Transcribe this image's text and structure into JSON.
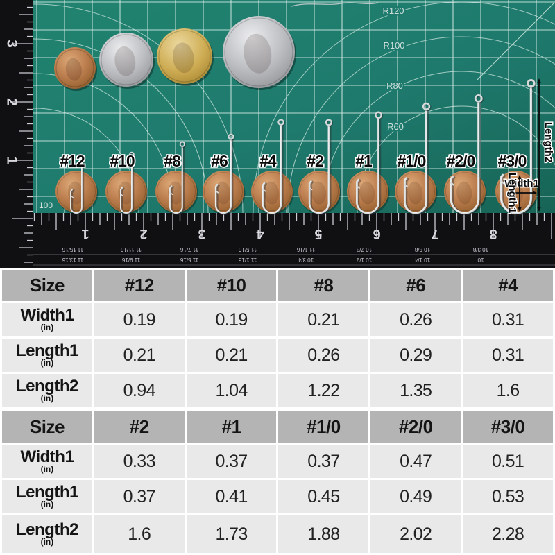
{
  "photo": {
    "radius_labels": [
      "R120",
      "R100",
      "R80",
      "R60"
    ],
    "corner_label": "100",
    "left_ruler_numbers": [
      "3",
      "2",
      "1"
    ],
    "bottom_ruler_numbers": [
      "1",
      "2",
      "3",
      "4",
      "5",
      "6",
      "7",
      "8"
    ],
    "fraction_row1": [
      "11 15/16",
      "11 11/16",
      "11 7/16",
      "11 5/16",
      "11 1/16",
      "10 7/8",
      "10 5/8",
      "10 3/8"
    ],
    "fraction_row2": [
      "11 13/16",
      "11 9/16",
      "11 5/16",
      "11 1/16",
      "10 3/4",
      "10 1/2",
      "10 1/4",
      "10"
    ],
    "coins": [
      "penny",
      "quarter",
      "dollar-coin",
      "half-dollar"
    ],
    "annotations": {
      "width1": "Width1",
      "length1": "Length1",
      "length2": "Length2"
    }
  },
  "hooks": [
    {
      "label": "#12",
      "width1": 0.19,
      "length1": 0.21,
      "length2": 0.94
    },
    {
      "label": "#10",
      "width1": 0.19,
      "length1": 0.21,
      "length2": 1.04
    },
    {
      "label": "#8",
      "width1": 0.21,
      "length1": 0.26,
      "length2": 1.22
    },
    {
      "label": "#6",
      "width1": 0.26,
      "length1": 0.29,
      "length2": 1.35
    },
    {
      "label": "#4",
      "width1": 0.31,
      "length1": 0.31,
      "length2": 1.6
    },
    {
      "label": "#2",
      "width1": 0.33,
      "length1": 0.37,
      "length2": 1.6
    },
    {
      "label": "#1",
      "width1": 0.37,
      "length1": 0.41,
      "length2": 1.73
    },
    {
      "label": "#1/0",
      "width1": 0.37,
      "length1": 0.45,
      "length2": 1.88
    },
    {
      "label": "#2/0",
      "width1": 0.47,
      "length1": 0.49,
      "length2": 2.02
    },
    {
      "label": "#3/0",
      "width1": 0.51,
      "length1": 0.53,
      "length2": 2.28
    }
  ],
  "tables": [
    {
      "header": [
        "Size",
        "#12",
        "#10",
        "#8",
        "#6",
        "#4"
      ],
      "rows": [
        {
          "label": "Width1",
          "unit": "(in)",
          "values": [
            "0.19",
            "0.19",
            "0.21",
            "0.26",
            "0.31"
          ]
        },
        {
          "label": "Length1",
          "unit": "(in)",
          "values": [
            "0.21",
            "0.21",
            "0.26",
            "0.29",
            "0.31"
          ]
        },
        {
          "label": "Length2",
          "unit": "(in)",
          "values": [
            "0.94",
            "1.04",
            "1.22",
            "1.35",
            "1.6"
          ]
        }
      ]
    },
    {
      "header": [
        "Size",
        "#2",
        "#1",
        "#1/0",
        "#2/0",
        "#3/0"
      ],
      "rows": [
        {
          "label": "Width1",
          "unit": "(in)",
          "values": [
            "0.33",
            "0.37",
            "0.37",
            "0.47",
            "0.51"
          ]
        },
        {
          "label": "Length1",
          "unit": "(in)",
          "values": [
            "0.37",
            "0.41",
            "0.45",
            "0.49",
            "0.53"
          ]
        },
        {
          "label": "Length2",
          "unit": "(in)",
          "values": [
            "1.6",
            "1.73",
            "1.88",
            "2.02",
            "2.28"
          ]
        }
      ]
    }
  ],
  "colors": {
    "mat": "#1e7a6d",
    "mat_dark": "#186a5e",
    "grid_line": "#d9ece7",
    "ruler_black": "#101013",
    "tick": "#cdced4",
    "table_header_bg": "#b4b4b4",
    "table_row_bg": "#e9e9e9",
    "copper": "#b5764a",
    "silver": "#b9babd",
    "gold": "#c9a84f",
    "hook_wire": "#d6d9da",
    "annotation": "#0a0a0a"
  }
}
